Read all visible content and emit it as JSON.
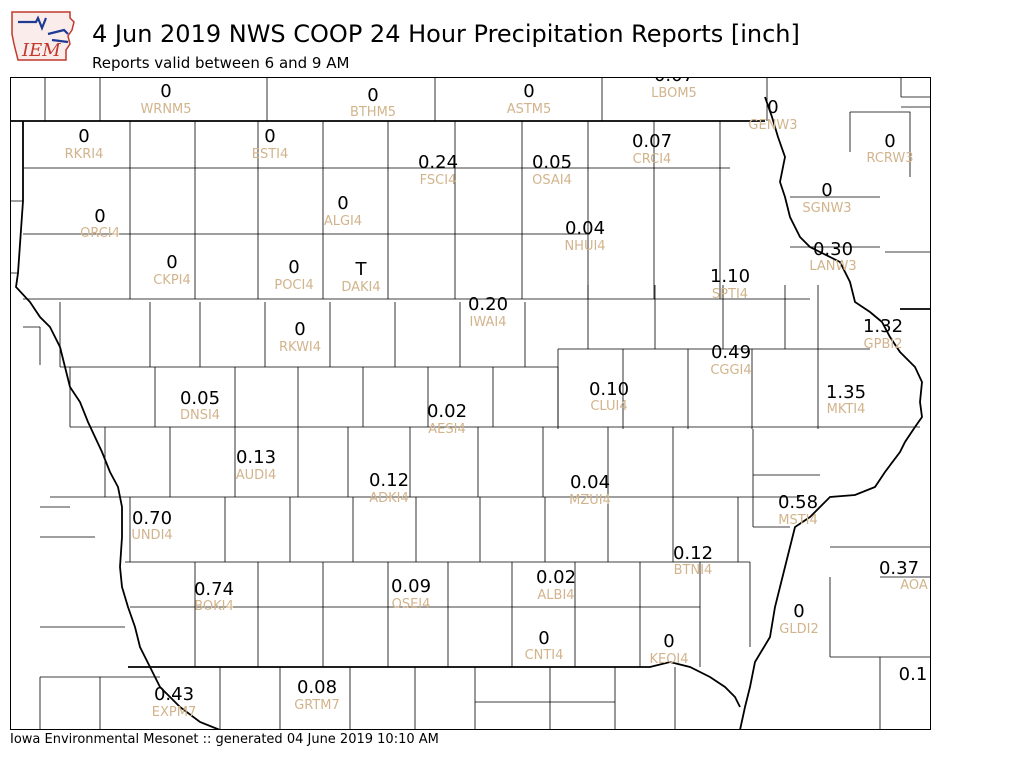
{
  "logo_text": "IEM",
  "title": "4 Jun 2019 NWS COOP 24 Hour Precipitation Reports [inch]",
  "subtitle": "Reports valid between 6 and 9 AM",
  "footer": "Iowa Environmental Mesonet :: generated 04 June 2019 10:10 AM",
  "colors": {
    "station_id": "#d2b48c",
    "value": "#000000",
    "boundary": "#000000"
  },
  "stations": [
    {
      "id": "WRNM5",
      "value": "0"
    },
    {
      "id": "BTHM5",
      "value": "0"
    },
    {
      "id": "ASTM5",
      "value": "0"
    },
    {
      "id": "LBOM5",
      "value": "0.07"
    },
    {
      "id": "GENW3",
      "value": "0"
    },
    {
      "id": "RKRI4",
      "value": "0"
    },
    {
      "id": "ESTI4",
      "value": "0"
    },
    {
      "id": "FSCI4",
      "value": "0.24"
    },
    {
      "id": "OSAI4",
      "value": "0.05"
    },
    {
      "id": "CRCI4",
      "value": "0.07"
    },
    {
      "id": "RCRW3",
      "value": "0"
    },
    {
      "id": "SGNW3",
      "value": "0"
    },
    {
      "id": "ORCI4",
      "value": "0"
    },
    {
      "id": "ALGI4",
      "value": "0"
    },
    {
      "id": "NHUI4",
      "value": "0.04"
    },
    {
      "id": "LANW3",
      "value": "0.30"
    },
    {
      "id": "CKPI4",
      "value": "0"
    },
    {
      "id": "POCI4",
      "value": "0"
    },
    {
      "id": "DAKI4",
      "value": "T"
    },
    {
      "id": "SPTI4",
      "value": "1.10"
    },
    {
      "id": "IWAI4",
      "value": "0.20"
    },
    {
      "id": "RKWI4",
      "value": "0"
    },
    {
      "id": "GPBI2",
      "value": "1.32"
    },
    {
      "id": "CGGI4",
      "value": "0.49"
    },
    {
      "id": "CLUI4",
      "value": "0.10"
    },
    {
      "id": "DNSI4",
      "value": "0.05"
    },
    {
      "id": "MKTI4",
      "value": "1.35"
    },
    {
      "id": "AESI4",
      "value": "0.02"
    },
    {
      "id": "AUDI4",
      "value": "0.13"
    },
    {
      "id": "ADKI4",
      "value": "0.12"
    },
    {
      "id": "MZUI4",
      "value": "0.04"
    },
    {
      "id": "MSTI4",
      "value": "0.58"
    },
    {
      "id": "UNDI4",
      "value": "0.70"
    },
    {
      "id": "BTNI4",
      "value": "0.12"
    },
    {
      "id": "AOA",
      "value": "0.37"
    },
    {
      "id": "BOKI4",
      "value": "0.74"
    },
    {
      "id": "OSEI4",
      "value": "0.09"
    },
    {
      "id": "ALBI4",
      "value": "0.02"
    },
    {
      "id": "GLDI2",
      "value": "0"
    },
    {
      "id": "CNTI4",
      "value": "0"
    },
    {
      "id": "KEOI4",
      "value": "0"
    },
    {
      "id": "EXPM7",
      "value": "0.43"
    },
    {
      "id": "GRTM7",
      "value": "0.08"
    },
    {
      "id": "",
      "value": "0.1"
    }
  ]
}
